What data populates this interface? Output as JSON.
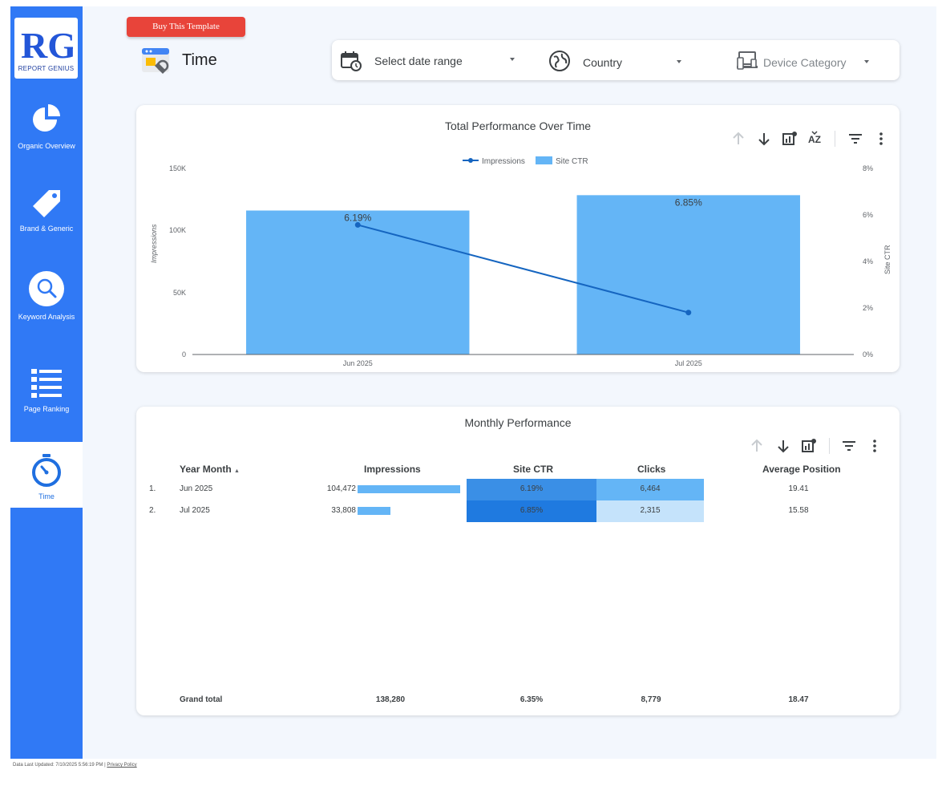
{
  "brand": {
    "logo_letters": "RG",
    "logo_text": "REPORT GENIUS"
  },
  "sidebar": {
    "items": [
      {
        "label": "Organic Overview",
        "icon": "pie-chart-icon"
      },
      {
        "label": "Brand & Generic",
        "icon": "tag-icon"
      },
      {
        "label": "Keyword Analysis",
        "icon": "magnifier-icon"
      },
      {
        "label": "Page Ranking",
        "icon": "list-icon"
      },
      {
        "label": "Time",
        "icon": "stopwatch-icon",
        "active": true
      }
    ]
  },
  "header": {
    "buy_label": "Buy This Template",
    "page_title": "Time"
  },
  "filters": {
    "date": "Select date range",
    "country": "Country",
    "device": "Device Category"
  },
  "chart": {
    "title": "Total Performance Over Time",
    "legend": {
      "line": "Impressions",
      "bar": "Site CTR"
    },
    "y_left_label": "Impressions",
    "y_right_label": "Site CTR",
    "y_left_ticks": [
      "150K",
      "100K",
      "50K",
      "0"
    ],
    "y_right_ticks": [
      "8%",
      "6%",
      "4%",
      "2%",
      "0%"
    ]
  },
  "chart_data": {
    "type": "bar",
    "categories": [
      "Jun 2025",
      "Jul 2025"
    ],
    "series": [
      {
        "name": "Site CTR",
        "type": "bar",
        "axis": "right",
        "values": [
          6.19,
          6.85
        ],
        "labels": [
          "6.19%",
          "6.85%"
        ]
      },
      {
        "name": "Impressions",
        "type": "line",
        "axis": "left",
        "values": [
          104472,
          33808
        ]
      }
    ],
    "title": "Total Performance Over Time",
    "ylabel": "Impressions",
    "y2label": "Site CTR",
    "ylim": [
      0,
      150000
    ],
    "y2lim": [
      0,
      8
    ],
    "legend": "top-center",
    "colors": {
      "bar": "#64b5f6",
      "line": "#1565c0"
    }
  },
  "table": {
    "title": "Monthly Performance",
    "headers": {
      "month": "Year Month",
      "impressions": "Impressions",
      "ctr": "Site CTR",
      "clicks": "Clicks",
      "position": "Average Position"
    },
    "rows": [
      {
        "index": "1.",
        "month": "Jun 2025",
        "impressions": "104,472",
        "impressions_fraction": 1.0,
        "ctr": "6.19%",
        "clicks": "6,464",
        "position": "19.41"
      },
      {
        "index": "2.",
        "month": "Jul 2025",
        "impressions": "33,808",
        "impressions_fraction": 0.324,
        "ctr": "6.85%",
        "clicks": "2,315",
        "position": "15.58"
      }
    ],
    "grand_total": {
      "label": "Grand total",
      "impressions": "138,280",
      "ctr": "6.35%",
      "clicks": "8,779",
      "position": "18.47"
    },
    "heat_colors": {
      "ctr_low": "#3a8fe6",
      "ctr_high": "#1f7ae0",
      "clicks_high": "#64b5f6",
      "clicks_low": "#c5e3fb"
    }
  },
  "footer": {
    "updated": "Data Last Updated: 7/10/2025 5:56:19 PM",
    "separator": "|",
    "privacy": "Privacy Policy"
  }
}
